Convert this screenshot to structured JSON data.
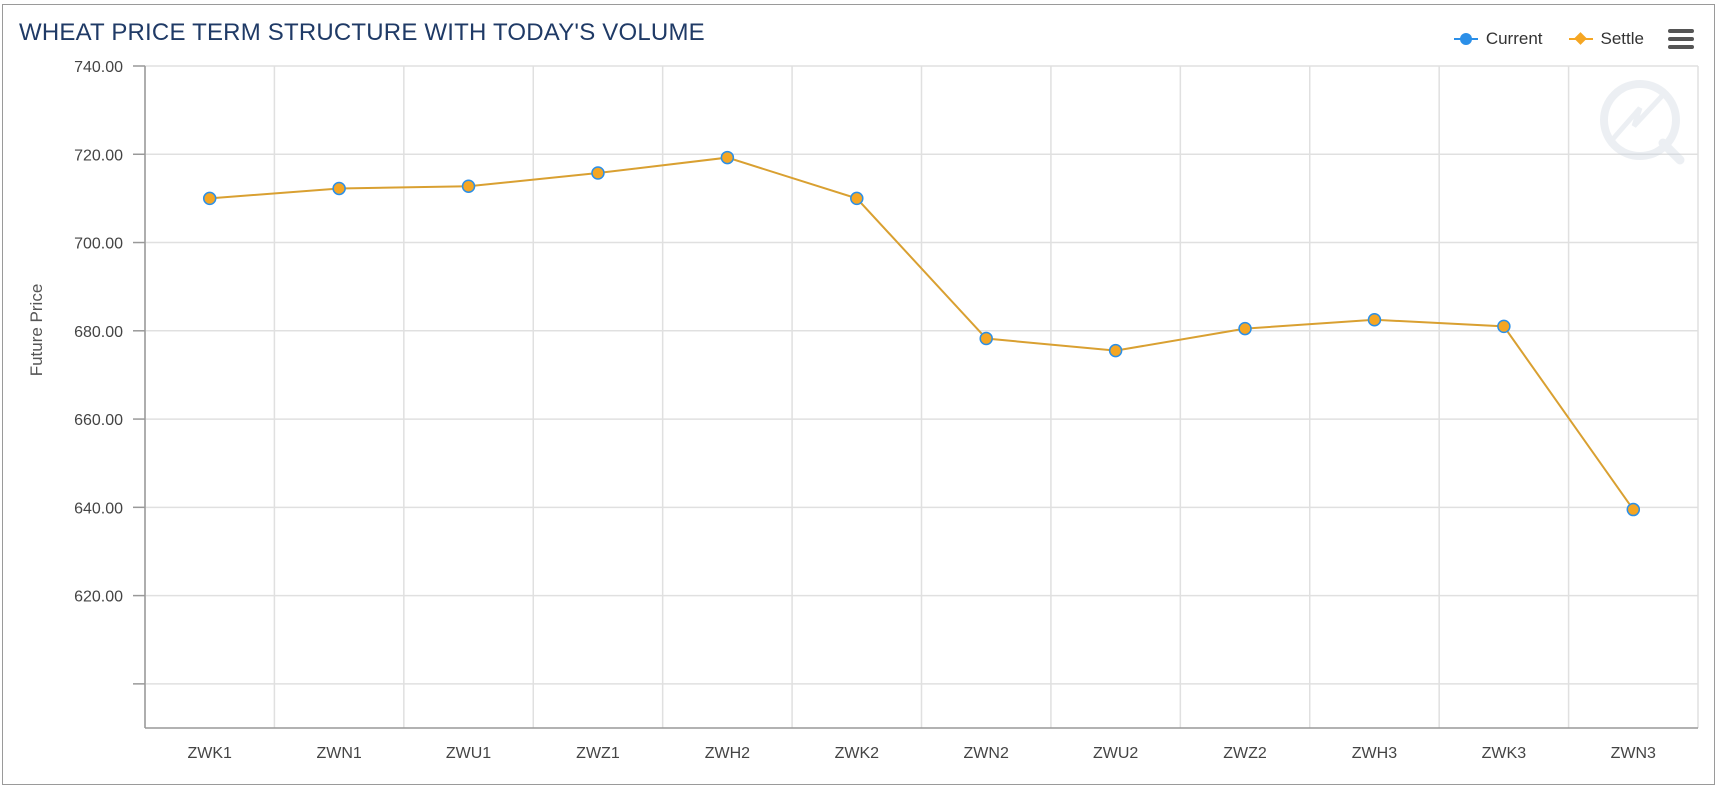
{
  "chart_data": {
    "type": "line",
    "title": "WHEAT PRICE TERM STRUCTURE WITH TODAY'S VOLUME",
    "ylabel": "Future Price",
    "xlabel": "",
    "categories": [
      "ZWK1",
      "ZWN1",
      "ZWU1",
      "ZWZ1",
      "ZWH2",
      "ZWK2",
      "ZWN2",
      "ZWU2",
      "ZWZ2",
      "ZWH3",
      "ZWK3",
      "ZWN3"
    ],
    "series": [
      {
        "name": "Current",
        "color": "#2b8fe8",
        "marker": "circle",
        "values": [
          710.0,
          712.25,
          712.75,
          715.75,
          719.25,
          710.0,
          678.25,
          675.5,
          680.5,
          682.5,
          681.0,
          639.5
        ]
      },
      {
        "name": "Settle",
        "color": "#f5a623",
        "marker": "diamond",
        "values": [
          710.0,
          712.25,
          712.75,
          715.75,
          719.25,
          710.0,
          678.25,
          675.5,
          680.5,
          682.5,
          681.0,
          639.5
        ]
      }
    ],
    "ylim": [
      590,
      740
    ],
    "yticks": [
      620,
      640,
      660,
      680,
      700,
      720,
      740
    ],
    "ytick_labels": [
      "620.00",
      "640.00",
      "660.00",
      "680.00",
      "700.00",
      "720.00",
      "740.00"
    ],
    "grid": true,
    "legend_position": "top-right"
  },
  "colors": {
    "title": "#1f3a66",
    "line": "#d9a031",
    "marker_fill": "#f5a623",
    "marker_stroke": "#2b8fe8",
    "grid": "#e0e0e0",
    "axis": "#999999"
  },
  "icons": {
    "menu": "hamburger-menu-icon",
    "watermark": "logo-watermark-icon"
  }
}
